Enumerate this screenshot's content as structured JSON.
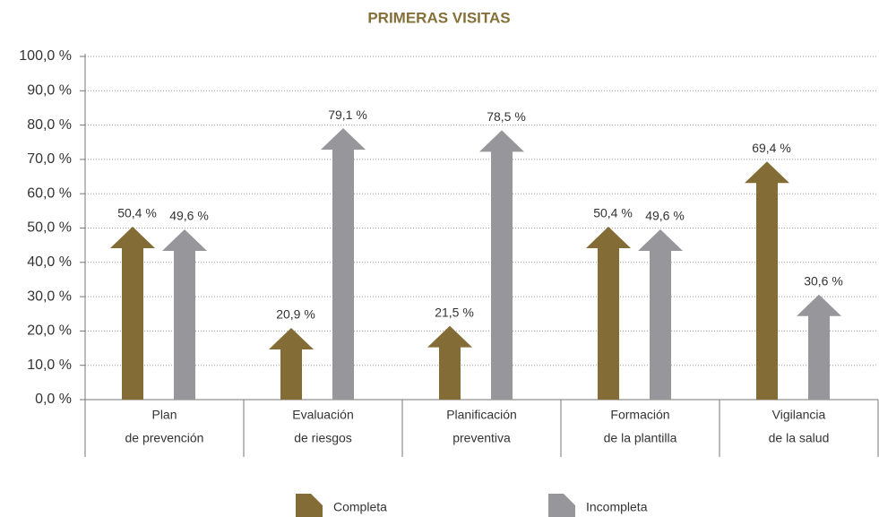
{
  "chart_data": {
    "type": "arrow-bar",
    "title": "PRIMERAS VISITAS",
    "categories": [
      [
        "Plan",
        "de prevención"
      ],
      [
        "Evaluación",
        "de riesgos"
      ],
      [
        "Planificación",
        "preventiva"
      ],
      [
        "Formación",
        "de la plantilla"
      ],
      [
        "Vigilancia",
        "de la salud"
      ]
    ],
    "series": [
      {
        "name": "Completa",
        "color": "#846c36",
        "values": [
          50.4,
          20.9,
          21.5,
          50.4,
          69.4
        ],
        "value_labels": [
          "50,4 %",
          "20,9 %",
          "21,5 %",
          "50,4 %",
          "69,4 %"
        ]
      },
      {
        "name": "Incompleta",
        "color": "#97979b",
        "values": [
          49.6,
          79.1,
          78.5,
          49.6,
          30.6
        ],
        "value_labels": [
          "49,6 %",
          "79,1 %",
          "78,5 %",
          "49,6 %",
          "30,6 %"
        ]
      }
    ],
    "ylim": [
      0,
      100
    ],
    "yticks": [
      {
        "value": 0,
        "label": "0,0 %"
      },
      {
        "value": 10,
        "label": "10,0 %"
      },
      {
        "value": 20,
        "label": "20,0 %"
      },
      {
        "value": 30,
        "label": "30,0 %"
      },
      {
        "value": 40,
        "label": "40,0 %"
      },
      {
        "value": 50,
        "label": "50,0 %"
      },
      {
        "value": 60,
        "label": "60,0 %"
      },
      {
        "value": 70,
        "label": "70,0 %"
      },
      {
        "value": 80,
        "label": "80,0 %"
      },
      {
        "value": 90,
        "label": "90,0 %"
      },
      {
        "value": 100,
        "label": "100,0 %"
      }
    ],
    "grid": true,
    "title_color": "#85703a"
  }
}
